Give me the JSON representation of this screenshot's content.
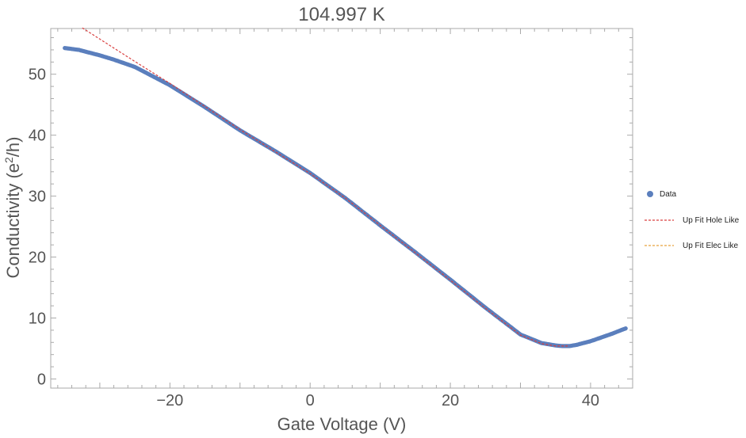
{
  "chart_data": {
    "type": "line",
    "title": "104.997 K",
    "xlabel": "Gate Voltage (V)",
    "ylabel_main": "Conductivity (e",
    "ylabel_sup": "2",
    "ylabel_tail": "/h)",
    "xlim": [
      -37,
      46
    ],
    "ylim": [
      -1.5,
      57.5
    ],
    "x_ticks": [
      -20,
      0,
      20,
      40
    ],
    "x_tick_labels": [
      "−20",
      "0",
      "20",
      "40"
    ],
    "y_ticks": [
      0,
      10,
      20,
      30,
      40,
      50
    ],
    "y_tick_labels": [
      "0",
      "10",
      "20",
      "30",
      "40",
      "50"
    ],
    "grid": false,
    "legend_position": "right",
    "series": [
      {
        "name": "Data",
        "kind": "points",
        "color": "#5b7fbd",
        "x": [
          -35.0,
          -33.0,
          -30.0,
          -28.0,
          -25.0,
          -22.0,
          -20.0,
          -15.0,
          -10.0,
          -5.0,
          0.0,
          5.0,
          10.0,
          15.0,
          20.0,
          25.0,
          30.0,
          33.0,
          35.0,
          36.0,
          37.0,
          38.0,
          40.0,
          43.0,
          45.0
        ],
        "y": [
          54.3,
          54.0,
          53.1,
          52.4,
          51.2,
          49.4,
          48.2,
          44.6,
          40.8,
          37.4,
          33.8,
          29.7,
          25.2,
          20.8,
          16.3,
          11.7,
          7.3,
          5.9,
          5.5,
          5.4,
          5.4,
          5.6,
          6.2,
          7.4,
          8.3
        ]
      },
      {
        "name": "Up Fit Hole Like",
        "kind": "dashed-line",
        "color": "#d94040",
        "x": [
          -32.5,
          -25.0,
          -20.0,
          -15.0,
          -10.0,
          -5.0,
          0.0,
          5.0,
          10.0,
          15.0,
          20.0,
          25.0,
          30.0,
          33.0,
          35.0,
          37.0
        ],
        "y": [
          57.6,
          52.1,
          48.5,
          44.7,
          40.9,
          37.3,
          33.7,
          29.7,
          25.2,
          20.7,
          16.2,
          11.6,
          7.2,
          5.8,
          5.4,
          5.4
        ]
      },
      {
        "name": "Up Fit Elec Like",
        "kind": "dashed-line",
        "color": "#e8a33d",
        "x": [],
        "y": []
      }
    ]
  }
}
